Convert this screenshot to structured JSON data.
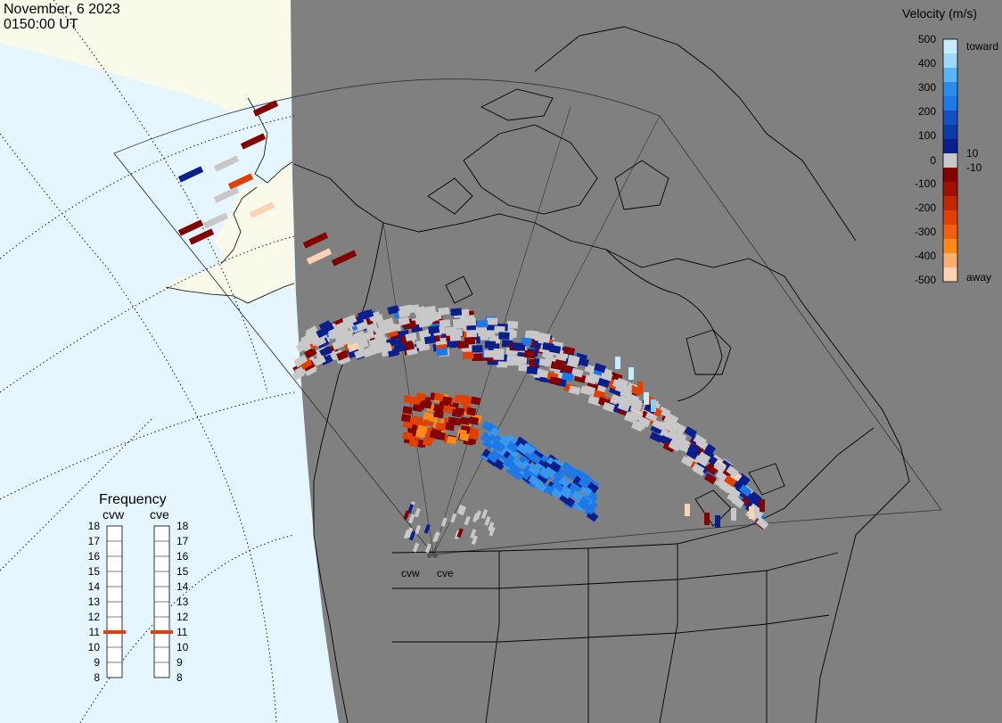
{
  "header": {
    "date": "November, 6 2023",
    "time": "0150:00 UT"
  },
  "velocity_legend": {
    "title": "Velocity (m/s)",
    "ticks": [
      "500",
      "400",
      "300",
      "200",
      "100",
      "10",
      "0",
      "-10",
      "-100",
      "-200",
      "-300",
      "-400",
      "-500"
    ],
    "toward_label": "toward",
    "away_label": "away",
    "colors": {
      "toward_light": "#c8ecff",
      "toward_mid": "#1e78e6",
      "toward_dark": "#0a1e8c",
      "ground": "#c8c8c8",
      "away_dark": "#820000",
      "away_mid": "#e04000",
      "away_light": "#ffd2b4"
    }
  },
  "frequency_panel": {
    "title": "Frequency",
    "radars": [
      {
        "name": "cvw",
        "frequency": 11
      },
      {
        "name": "cve",
        "frequency": 11
      }
    ],
    "scale_labels": [
      "18",
      "17",
      "16",
      "15",
      "14",
      "13",
      "12",
      "11",
      "10",
      "9",
      "8"
    ],
    "marker_color": "#e04010"
  },
  "stations": [
    {
      "name": "cvw"
    },
    {
      "name": "cve"
    }
  ],
  "colors": {
    "night": "#808080",
    "ocean_day": "#e6f6ff",
    "land_day": "#fafaeb",
    "coast": "#000000"
  }
}
